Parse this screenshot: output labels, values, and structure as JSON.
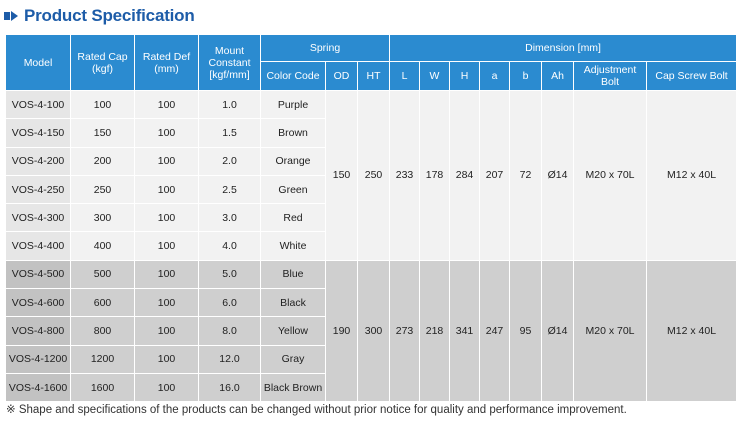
{
  "title": "Product Specification",
  "header": {
    "model": "Model",
    "rated_cap": "Rated Cap (kgf)",
    "rated_def": "Rated Def (mm)",
    "mount_constant": "Mount Constant [kgf/mm]",
    "spring": "Spring",
    "dimension": "Dimension [mm]",
    "color_code": "Color Code",
    "od": "OD",
    "ht": "HT",
    "l": "L",
    "w": "W",
    "h": "H",
    "a": "a",
    "b": "b",
    "ah": "Ah",
    "adjustment_bolt": "Adjustment Bolt",
    "cap_screw_bolt": "Cap Screw Bolt"
  },
  "groups": [
    {
      "shared": {
        "od": "150",
        "ht": "250",
        "l": "233",
        "w": "178",
        "h": "284",
        "a": "207",
        "b": "72",
        "ah": "Ø14",
        "adjustment_bolt": "M20 x 70L",
        "cap_screw_bolt": "M12 x 40L"
      },
      "rows": [
        {
          "model": "VOS-4-100",
          "cap": "100",
          "def": "100",
          "constant": "1.0",
          "color": "Purple"
        },
        {
          "model": "VOS-4-150",
          "cap": "150",
          "def": "100",
          "constant": "1.5",
          "color": "Brown"
        },
        {
          "model": "VOS-4-200",
          "cap": "200",
          "def": "100",
          "constant": "2.0",
          "color": "Orange"
        },
        {
          "model": "VOS-4-250",
          "cap": "250",
          "def": "100",
          "constant": "2.5",
          "color": "Green"
        },
        {
          "model": "VOS-4-300",
          "cap": "300",
          "def": "100",
          "constant": "3.0",
          "color": "Red"
        },
        {
          "model": "VOS-4-400",
          "cap": "400",
          "def": "100",
          "constant": "4.0",
          "color": "White"
        }
      ]
    },
    {
      "shared": {
        "od": "190",
        "ht": "300",
        "l": "273",
        "w": "218",
        "h": "341",
        "a": "247",
        "b": "95",
        "ah": "Ø14",
        "adjustment_bolt": "M20 x 70L",
        "cap_screw_bolt": "M12 x 40L"
      },
      "rows": [
        {
          "model": "VOS-4-500",
          "cap": "500",
          "def": "100",
          "constant": "5.0",
          "color": "Blue"
        },
        {
          "model": "VOS-4-600",
          "cap": "600",
          "def": "100",
          "constant": "6.0",
          "color": "Black"
        },
        {
          "model": "VOS-4-800",
          "cap": "800",
          "def": "100",
          "constant": "8.0",
          "color": "Yellow"
        },
        {
          "model": "VOS-4-1200",
          "cap": "1200",
          "def": "100",
          "constant": "12.0",
          "color": "Gray"
        },
        {
          "model": "VOS-4-1600",
          "cap": "1600",
          "def": "100",
          "constant": "16.0",
          "color": "Black Brown"
        }
      ]
    }
  ],
  "footnote": "※ Shape and specifications of the products can be changed without prior notice for quality and performance improvement."
}
